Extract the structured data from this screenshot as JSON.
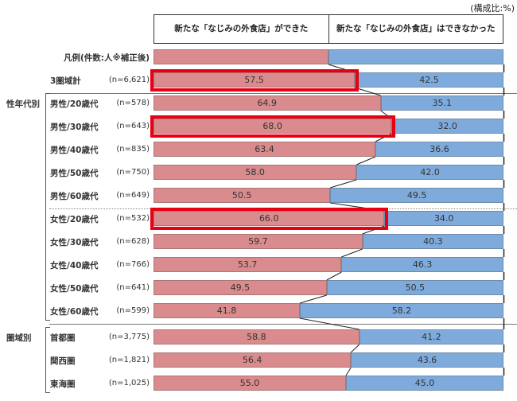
{
  "note": "(構成比:%)",
  "legend_row": {
    "label": "凡例(件数:人※補正後)",
    "split_percent": 50
  },
  "chart_data": {
    "type": "bar",
    "stacked": true,
    "orientation": "horizontal",
    "value_unit": "%",
    "xlim": [
      0,
      100
    ],
    "categories": [
      "3圏域計",
      "男性/20歳代",
      "男性/30歳代",
      "男性/40歳代",
      "男性/50歳代",
      "男性/60歳代",
      "女性/20歳代",
      "女性/30歳代",
      "女性/40歳代",
      "女性/50歳代",
      "女性/60歳代",
      "首都圏",
      "関西圏",
      "東海圏"
    ],
    "n_labels": [
      "(n=6,621)",
      "(n=578)",
      "(n=643)",
      "(n=835)",
      "(n=750)",
      "(n=649)",
      "(n=532)",
      "(n=628)",
      "(n=766)",
      "(n=641)",
      "(n=599)",
      "(n=3,775)",
      "(n=1,821)",
      "(n=1,025)"
    ],
    "series": [
      {
        "name": "新たな「なじみの外食店」ができた",
        "color": "#d98b8d",
        "values": [
          57.5,
          64.9,
          68.0,
          63.4,
          58.0,
          50.5,
          66.0,
          59.7,
          53.7,
          49.5,
          41.8,
          58.8,
          56.4,
          55.0
        ]
      },
      {
        "name": "新たな「なじみの外食店」はできなかった",
        "color": "#7fabdc",
        "values": [
          42.5,
          35.1,
          32.0,
          36.6,
          42.0,
          49.5,
          34.0,
          40.3,
          46.3,
          50.5,
          58.2,
          41.2,
          43.6,
          45.0
        ]
      }
    ],
    "highlighted_rows": [
      0,
      2,
      6
    ],
    "highlight_color": "#e60012",
    "groups": [
      {
        "label": "性年代別",
        "start": 1,
        "end": 10
      },
      {
        "label": "圏域別",
        "start": 11,
        "end": 13
      }
    ],
    "separators": [
      {
        "after_row": 0,
        "style": "solid"
      },
      {
        "after_row": 5,
        "style": "dotted"
      },
      {
        "after_row": 10,
        "style": "solid"
      }
    ]
  }
}
